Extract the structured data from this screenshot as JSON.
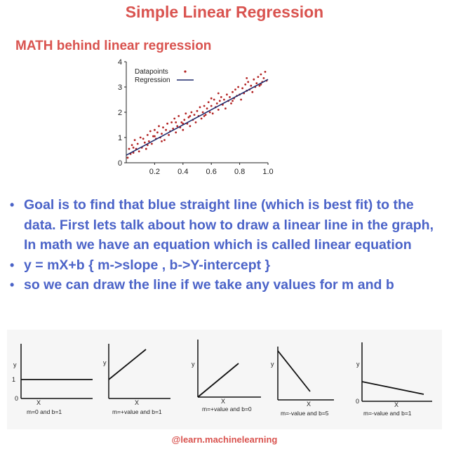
{
  "header": {
    "title": "Simple Linear Regression",
    "subtitle": "MATH behind linear regression"
  },
  "chart_data": {
    "type": "scatter",
    "legend": {
      "placement": "top-left",
      "entries": [
        "Datapoints",
        "Regression"
      ]
    },
    "series_colors": {
      "points": "#b22222",
      "line": "#1f2a6b"
    },
    "xlim": [
      0,
      1.0
    ],
    "ylim": [
      0,
      4
    ],
    "xticks": [
      "0.2",
      "0.4",
      "0.6",
      "0.8",
      "1.0"
    ],
    "yticks": [
      "0",
      "1",
      "2",
      "3",
      "4"
    ],
    "regression": {
      "intercept": 0.3,
      "slope": 3.0
    },
    "points": [
      [
        0.01,
        0.2
      ],
      [
        0.02,
        0.55
      ],
      [
        0.03,
        0.35
      ],
      [
        0.04,
        0.7
      ],
      [
        0.05,
        0.4
      ],
      [
        0.06,
        0.9
      ],
      [
        0.07,
        0.55
      ],
      [
        0.08,
        0.75
      ],
      [
        0.09,
        0.45
      ],
      [
        0.1,
        1.0
      ],
      [
        0.11,
        0.6
      ],
      [
        0.12,
        0.95
      ],
      [
        0.13,
        0.8
      ],
      [
        0.14,
        0.55
      ],
      [
        0.15,
        1.1
      ],
      [
        0.16,
        0.85
      ],
      [
        0.17,
        1.25
      ],
      [
        0.18,
        0.75
      ],
      [
        0.19,
        1.05
      ],
      [
        0.2,
        1.3
      ],
      [
        0.21,
        0.95
      ],
      [
        0.22,
        1.2
      ],
      [
        0.23,
        1.45
      ],
      [
        0.24,
        1.0
      ],
      [
        0.25,
        1.15
      ],
      [
        0.26,
        1.4
      ],
      [
        0.27,
        0.9
      ],
      [
        0.28,
        1.3
      ],
      [
        0.29,
        1.55
      ],
      [
        0.3,
        1.1
      ],
      [
        0.31,
        1.25
      ],
      [
        0.32,
        1.6
      ],
      [
        0.33,
        1.35
      ],
      [
        0.34,
        1.75
      ],
      [
        0.35,
        1.2
      ],
      [
        0.36,
        1.45
      ],
      [
        0.37,
        1.85
      ],
      [
        0.38,
        1.4
      ],
      [
        0.39,
        1.6
      ],
      [
        0.4,
        1.3
      ],
      [
        0.41,
        1.7
      ],
      [
        0.42,
        1.95
      ],
      [
        0.43,
        1.55
      ],
      [
        0.44,
        1.8
      ],
      [
        0.45,
        1.45
      ],
      [
        0.46,
        2.0
      ],
      [
        0.47,
        1.7
      ],
      [
        0.48,
        1.9
      ],
      [
        0.49,
        1.6
      ],
      [
        0.5,
        2.05
      ],
      [
        0.51,
        1.85
      ],
      [
        0.52,
        2.2
      ],
      [
        0.53,
        1.75
      ],
      [
        0.54,
        2.0
      ],
      [
        0.55,
        2.25
      ],
      [
        0.56,
        1.9
      ],
      [
        0.57,
        2.15
      ],
      [
        0.58,
        2.4
      ],
      [
        0.59,
        2.0
      ],
      [
        0.6,
        2.25
      ],
      [
        0.61,
        1.95
      ],
      [
        0.62,
        2.5
      ],
      [
        0.63,
        2.2
      ],
      [
        0.64,
        2.35
      ],
      [
        0.65,
        2.1
      ],
      [
        0.66,
        2.45
      ],
      [
        0.67,
        2.6
      ],
      [
        0.68,
        2.3
      ],
      [
        0.69,
        2.5
      ],
      [
        0.7,
        2.15
      ],
      [
        0.71,
        2.7
      ],
      [
        0.72,
        2.45
      ],
      [
        0.73,
        2.6
      ],
      [
        0.74,
        2.35
      ],
      [
        0.75,
        2.8
      ],
      [
        0.76,
        2.55
      ],
      [
        0.77,
        2.9
      ],
      [
        0.78,
        2.65
      ],
      [
        0.79,
        3.0
      ],
      [
        0.8,
        2.7
      ],
      [
        0.81,
        2.5
      ],
      [
        0.82,
        2.95
      ],
      [
        0.83,
        2.75
      ],
      [
        0.84,
        3.1
      ],
      [
        0.85,
        2.85
      ],
      [
        0.86,
        3.2
      ],
      [
        0.87,
        2.9
      ],
      [
        0.88,
        3.05
      ],
      [
        0.89,
        2.8
      ],
      [
        0.9,
        3.3
      ],
      [
        0.91,
        3.0
      ],
      [
        0.92,
        3.15
      ],
      [
        0.93,
        3.4
      ],
      [
        0.94,
        3.05
      ],
      [
        0.95,
        3.5
      ],
      [
        0.96,
        3.2
      ],
      [
        0.97,
        3.35
      ],
      [
        0.98,
        3.6
      ],
      [
        0.99,
        3.25
      ],
      [
        0.15,
        0.7
      ],
      [
        0.35,
        1.6
      ],
      [
        0.55,
        1.85
      ],
      [
        0.75,
        2.45
      ],
      [
        0.85,
        3.35
      ],
      [
        0.25,
        0.85
      ],
      [
        0.45,
        1.85
      ],
      [
        0.65,
        2.75
      ],
      [
        0.05,
        0.6
      ],
      [
        0.95,
        3.1
      ],
      [
        0.6,
        2.55
      ],
      [
        0.4,
        1.55
      ],
      [
        0.2,
        1.05
      ]
    ]
  },
  "bullets": [
    "Goal is to find that blue straight line (which is best fit) to the data. First lets talk about how to draw a linear line in the graph, In math we have an equation which is called linear equation",
    "y = mX+b { m->slope , b->Y-intercept }",
    "so we can draw the line if we take any values for m and b"
  ],
  "bullet_glyph": "•",
  "cases": [
    {
      "caption": "m=0 and b=1",
      "y_label": "y",
      "x_label": "X",
      "origin_label": "0",
      "intercept_label": "1",
      "kind": "flat"
    },
    {
      "caption": "m=+value and b=1",
      "y_label": "y",
      "x_label": "X",
      "origin_label": "",
      "intercept_label": "",
      "kind": "rise-offset"
    },
    {
      "caption": "m=+value and b=0",
      "y_label": "y",
      "x_label": "X",
      "origin_label": "",
      "intercept_label": "",
      "kind": "rise-origin"
    },
    {
      "caption": "m=-value and b=5",
      "y_label": "y",
      "x_label": "X",
      "origin_label": "",
      "intercept_label": "",
      "kind": "fall-steep"
    },
    {
      "caption": "m=-value and b=1",
      "y_label": "y",
      "x_label": "X",
      "origin_label": "0",
      "intercept_label": "",
      "kind": "fall-shallow"
    }
  ],
  "footer": {
    "handle": "@learn.machinelearning"
  }
}
